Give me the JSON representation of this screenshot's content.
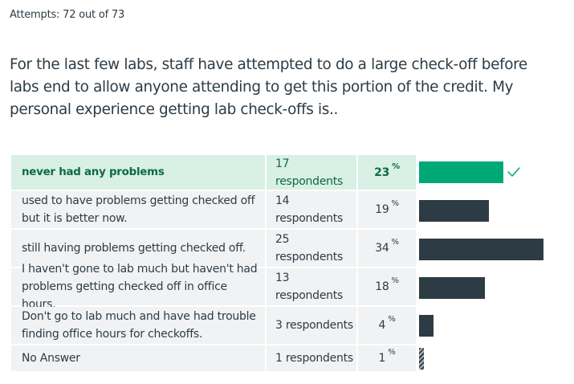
{
  "attempts": "Attempts: 72 out of 73",
  "question": "For the last few labs, staff have attempted to do a large check-off before labs end to allow anyone attending to get this portion of the credit. My personal experience getting lab check-offs is..",
  "percent_symbol": "%",
  "colors": {
    "correct_row_bg": "#d8f0e6",
    "correct_text": "#0e6a43",
    "correct_bar": "#00a878",
    "bar": "#2d3b45",
    "row_bg": "#f1f2f3"
  },
  "answers": [
    {
      "text": "never had any problems",
      "respondents": "17 respondents",
      "percent": "23",
      "value": 23,
      "correct": true
    },
    {
      "text": "used to have problems getting checked off but it is better now.",
      "respondents": "14 respondents",
      "percent": "19",
      "value": 19,
      "correct": false
    },
    {
      "text": "still having problems getting checked off.",
      "respondents": "25 respondents",
      "percent": "34",
      "value": 34,
      "correct": false
    },
    {
      "text": "I haven't gone to lab much but haven't had problems getting checked off in office hours.",
      "respondents": "13 respondents",
      "percent": "18",
      "value": 18,
      "correct": false
    },
    {
      "text": "Don't go to lab much and have had trouble finding office hours for checkoffs.",
      "respondents": "3 respondents",
      "percent": "4",
      "value": 4,
      "correct": false
    },
    {
      "text": "No Answer",
      "respondents": "1 respondents",
      "percent": "1",
      "value": 1,
      "correct": false,
      "striped": true
    }
  ]
}
